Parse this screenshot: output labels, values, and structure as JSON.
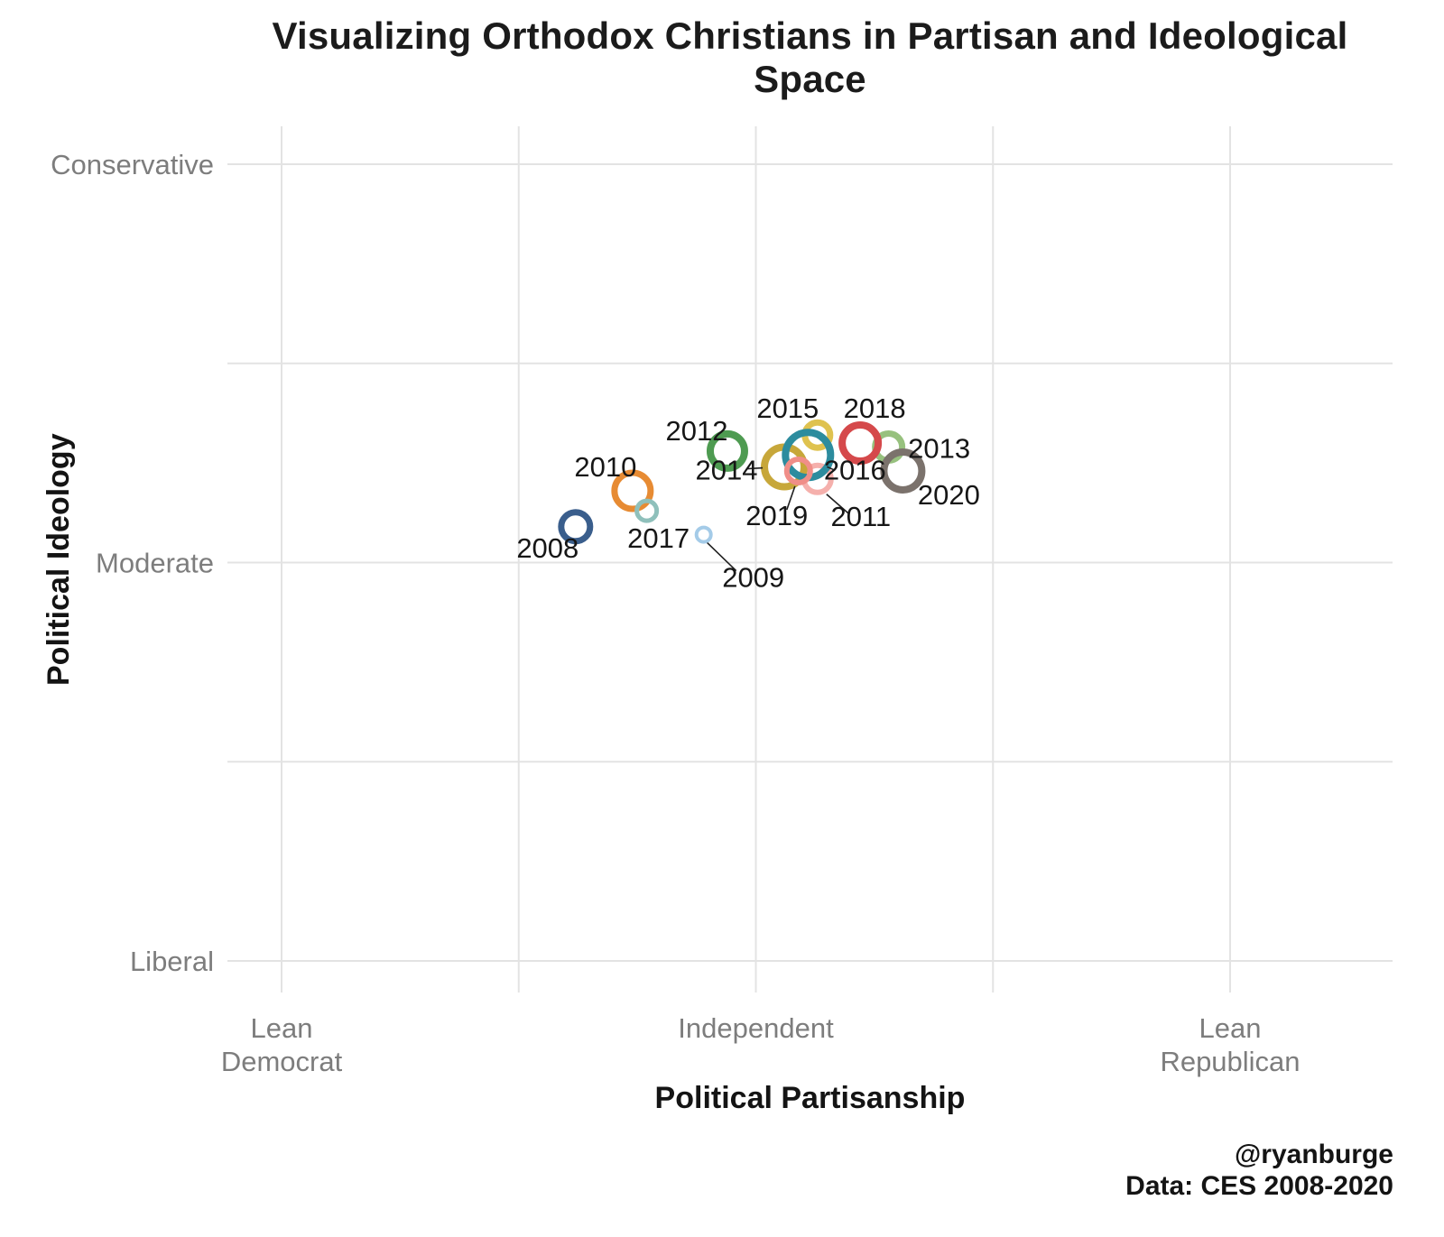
{
  "caption": {
    "handle": "@ryanburge",
    "source": "Data: CES 2008-2020"
  },
  "chart_data": {
    "type": "scatter",
    "title": "Visualizing Orthodox Christians in Partisan and Ideological Space",
    "xlabel": "Political Partisanship",
    "ylabel": "Political Ideology",
    "x_range": [
      2.89,
      5.34
    ],
    "y_range": [
      1.87,
      4.1
    ],
    "grid": "on",
    "legend_position": "none",
    "x_ticks": [
      {
        "value": 3,
        "lines": [
          "Lean",
          "Democrat"
        ]
      },
      {
        "value": 4,
        "lines": [
          "Independent"
        ]
      },
      {
        "value": 5,
        "lines": [
          "Lean",
          "Republican"
        ]
      }
    ],
    "y_ticks": [
      {
        "value": 4,
        "label": "Conservative"
      },
      {
        "value": 3,
        "label": "Moderate"
      },
      {
        "value": 2,
        "label": "Liberal"
      }
    ],
    "grid_x": [
      3,
      3.5,
      4,
      4.5,
      5
    ],
    "grid_y": [
      2,
      2.5,
      3,
      3.5,
      4
    ],
    "points": [
      {
        "year": "2008",
        "x": 3.62,
        "y": 3.09,
        "size": 16,
        "ring": 7,
        "color": "#3A5E8C",
        "label_offset": [
          -31,
          34
        ]
      },
      {
        "year": "2009",
        "x": 3.89,
        "y": 3.07,
        "size": 8,
        "ring": 4,
        "color": "#A4CBE8",
        "label_offset": [
          55,
          58
        ],
        "leader": [
          [
            4,
            9
          ],
          [
            36,
            40
          ]
        ]
      },
      {
        "year": "2010",
        "x": 3.74,
        "y": 3.18,
        "size": 20,
        "ring": 7,
        "color": "#E78B33",
        "label_offset": [
          -30,
          -16
        ]
      },
      {
        "year": "2011",
        "x": 4.13,
        "y": 3.21,
        "size": 15,
        "ring": 6,
        "color": "#F5B0AC",
        "label_offset": [
          48,
          52
        ],
        "leader": [
          [
            10,
            17
          ],
          [
            34,
            38
          ]
        ]
      },
      {
        "year": "2012",
        "x": 3.94,
        "y": 3.28,
        "size": 19,
        "ring": 8,
        "color": "#4E9B51",
        "label_offset": [
          -34,
          -12
        ]
      },
      {
        "year": "2013",
        "x": 4.28,
        "y": 3.29,
        "size": 15,
        "ring": 7,
        "color": "#97C17E",
        "label_offset": [
          56,
          12
        ]
      },
      {
        "year": "2014",
        "x": 4.06,
        "y": 3.24,
        "size": 22,
        "ring": 8,
        "color": "#C7A73A",
        "label_offset": [
          -64,
          14
        ],
        "leader": [
          [
            -41,
            2
          ],
          [
            -24,
            1
          ]
        ]
      },
      {
        "year": "2015",
        "x": 4.13,
        "y": 3.32,
        "size": 14,
        "ring": 7,
        "color": "#DFC24F",
        "label_offset": [
          -33,
          -19
        ]
      },
      {
        "year": "2016",
        "x": 4.11,
        "y": 3.27,
        "size": 25,
        "ring": 8,
        "color": "#2C8C9E",
        "label_offset": [
          52,
          27
        ],
        "leader": [
          [
            21,
            13
          ],
          [
            30,
            17
          ]
        ]
      },
      {
        "year": "2017",
        "x": 3.77,
        "y": 3.13,
        "size": 11,
        "ring": 5,
        "color": "#8FC0BB",
        "label_offset": [
          13,
          41
        ]
      },
      {
        "year": "2018",
        "x": 4.22,
        "y": 3.3,
        "size": 20,
        "ring": 8,
        "color": "#D5494B",
        "label_offset": [
          16,
          -28
        ]
      },
      {
        "year": "2019",
        "x": 4.09,
        "y": 3.23,
        "size": 13,
        "ring": 6,
        "color": "#F08E88",
        "label_offset": [
          -24,
          60
        ],
        "leader": [
          [
            -4,
            17
          ],
          [
            -13,
            43
          ]
        ]
      },
      {
        "year": "2020",
        "x": 4.31,
        "y": 3.23,
        "size": 21,
        "ring": 8,
        "color": "#7B726C",
        "label_offset": [
          51,
          37
        ]
      }
    ]
  }
}
